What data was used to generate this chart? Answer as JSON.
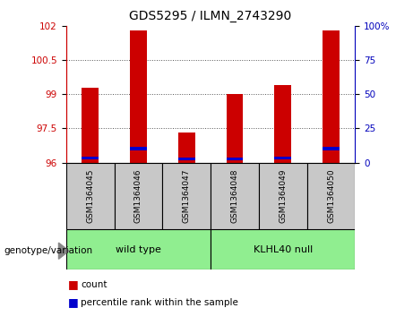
{
  "title": "GDS5295 / ILMN_2743290",
  "samples": [
    "GSM1364045",
    "GSM1364046",
    "GSM1364047",
    "GSM1364048",
    "GSM1364049",
    "GSM1364050"
  ],
  "red_values": [
    99.3,
    101.8,
    97.3,
    99.0,
    99.4,
    101.8
  ],
  "blue_values": [
    96.12,
    96.55,
    96.08,
    96.08,
    96.12,
    96.55
  ],
  "blue_heights": [
    0.12,
    0.12,
    0.12,
    0.12,
    0.12,
    0.12
  ],
  "ylim_left": [
    96,
    102
  ],
  "ylim_right": [
    0,
    100
  ],
  "left_ticks": [
    96,
    97.5,
    99,
    100.5,
    102
  ],
  "right_ticks": [
    0,
    25,
    50,
    75,
    100
  ],
  "bar_width": 0.35,
  "red_color": "#cc0000",
  "blue_color": "#0000cc",
  "left_tick_color": "#cc0000",
  "right_tick_color": "#0000bb",
  "grid_color": "#333333",
  "bg_color": "#ffffff",
  "legend_red": "count",
  "legend_blue": "percentile rank within the sample",
  "sample_box_color": "#c8c8c8",
  "group_box_color": "#90ee90",
  "group_label": "genotype/variation",
  "wt_label": "wild type",
  "kl_label": "KLHL40 null"
}
